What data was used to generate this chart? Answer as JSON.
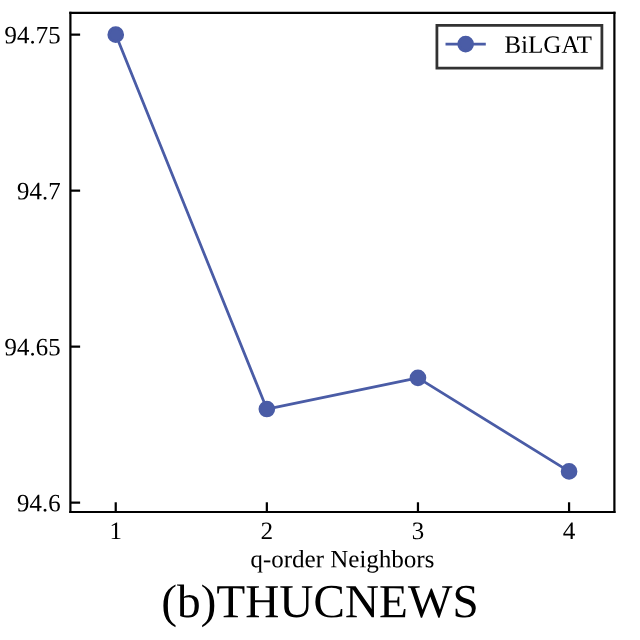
{
  "chart_data": {
    "type": "line",
    "xlabel": "q-order Neighbors",
    "x": [
      1,
      2,
      3,
      4
    ],
    "series": [
      {
        "name": "BiLGAT",
        "color": "#4a5ca6",
        "values": [
          94.75,
          94.63,
          94.64,
          94.61
        ]
      }
    ],
    "xlim": [
      0.7,
      4.3
    ],
    "xticks": [
      1,
      2,
      3,
      4
    ],
    "ylim": [
      94.597,
      94.757
    ],
    "yticks": [
      94.6,
      94.65,
      94.7,
      94.75
    ],
    "marker": "circle",
    "line_style": "solid",
    "grid": false,
    "legend": "top right",
    "annotations": [
      "(b)THUCNEWS"
    ]
  }
}
